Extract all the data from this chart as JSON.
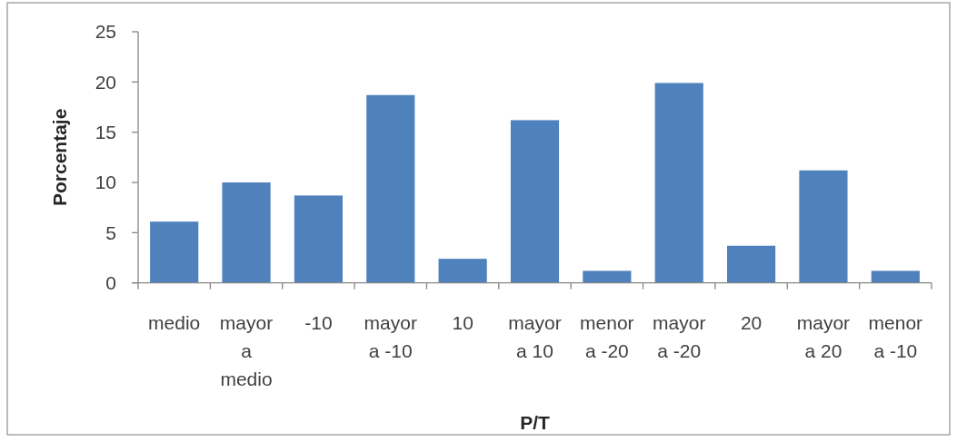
{
  "chart_data": {
    "type": "bar",
    "xlabel": "P/T",
    "ylabel": "Porcentaje",
    "categories": [
      "medio",
      "mayor a medio",
      "-10",
      "mayor a -10",
      "10",
      "mayor a 10",
      "menor a -20",
      "mayor a -20",
      "20",
      "mayor a 20",
      "menor a -10"
    ],
    "values": [
      6.1,
      10.0,
      8.7,
      18.7,
      2.4,
      16.2,
      1.2,
      19.9,
      3.7,
      11.2,
      1.2
    ],
    "color": "#4f81bd",
    "ylim": [
      0,
      25
    ],
    "yticks": [
      0,
      5,
      10,
      15,
      20,
      25
    ]
  }
}
